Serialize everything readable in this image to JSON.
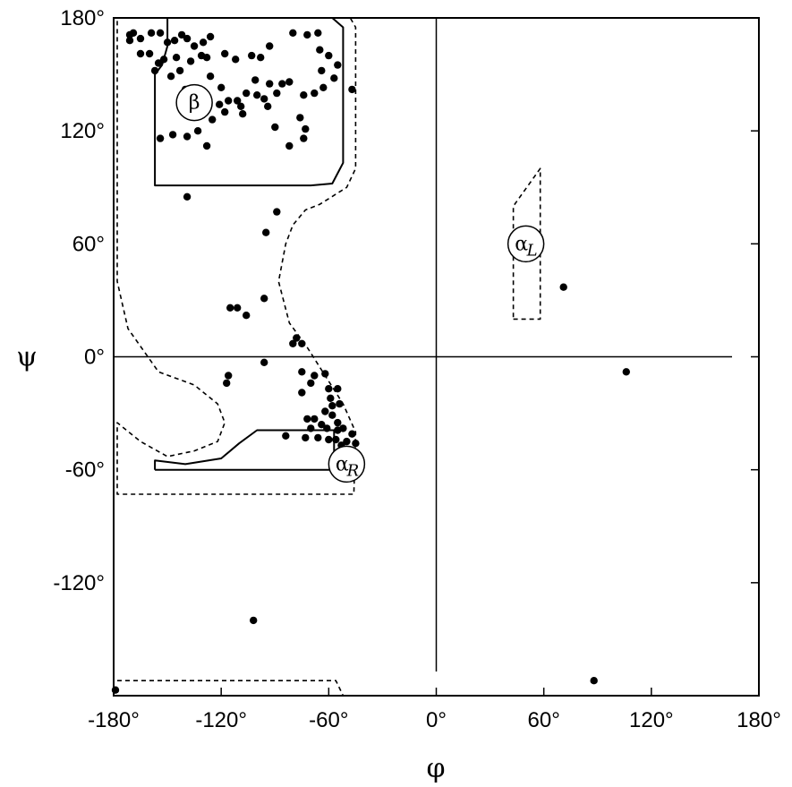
{
  "chart_data": {
    "type": "scatter",
    "title": "",
    "xlabel": "φ",
    "ylabel": "ψ",
    "xlim": [
      -180,
      180
    ],
    "ylim": [
      -180,
      180
    ],
    "x_ticks": [
      -180,
      -120,
      -60,
      0,
      60,
      120,
      180
    ],
    "y_ticks": [
      -120,
      -60,
      0,
      60,
      120,
      180
    ],
    "x_tick_labels": [
      "-180°",
      "-120°",
      "-60°",
      "0°",
      "60°",
      "120°",
      "180°"
    ],
    "y_tick_labels": [
      "-120°",
      "-60°",
      "0°",
      "60°",
      "120°",
      "180°"
    ],
    "grid": false,
    "reference_lines": {
      "phi": 0,
      "psi": 0
    },
    "points": [
      [
        -171,
        171
      ],
      [
        -169,
        172
      ],
      [
        -165,
        169
      ],
      [
        -159,
        172
      ],
      [
        -154,
        172
      ],
      [
        -150,
        167
      ],
      [
        -146,
        168
      ],
      [
        -142,
        171
      ],
      [
        -139,
        169
      ],
      [
        -135,
        165
      ],
      [
        -130,
        167
      ],
      [
        -126,
        170
      ],
      [
        -118,
        161
      ],
      [
        -160,
        161
      ],
      [
        -152,
        158
      ],
      [
        -145,
        159
      ],
      [
        -137,
        157
      ],
      [
        -131,
        160
      ],
      [
        -128,
        159
      ],
      [
        -112,
        158
      ],
      [
        -103,
        160
      ],
      [
        -98,
        159
      ],
      [
        -93,
        165
      ],
      [
        -80,
        172
      ],
      [
        -72,
        171
      ],
      [
        -66,
        172
      ],
      [
        -65,
        163
      ],
      [
        -60,
        160
      ],
      [
        -64,
        152
      ],
      [
        -55,
        155
      ],
      [
        -57,
        148
      ],
      [
        -63,
        143
      ],
      [
        -68,
        140
      ],
      [
        -74,
        139
      ],
      [
        -86,
        145
      ],
      [
        -93,
        145
      ],
      [
        -101,
        147
      ],
      [
        -106,
        140
      ],
      [
        -111,
        136
      ],
      [
        -121,
        134
      ],
      [
        -130,
        135
      ],
      [
        -140,
        142
      ],
      [
        -148,
        149
      ],
      [
        -155,
        156
      ],
      [
        -165,
        161
      ],
      [
        -171,
        168
      ],
      [
        -157,
        152
      ],
      [
        -143,
        152
      ],
      [
        -126,
        149
      ],
      [
        -120,
        143
      ],
      [
        -116,
        136
      ],
      [
        -109,
        133
      ],
      [
        -100,
        139
      ],
      [
        -96,
        137
      ],
      [
        -94,
        133
      ],
      [
        -89,
        140
      ],
      [
        -82,
        146
      ],
      [
        -76,
        127
      ],
      [
        -73,
        121
      ],
      [
        -74,
        116
      ],
      [
        -82,
        112
      ],
      [
        -90,
        122
      ],
      [
        -108,
        129
      ],
      [
        -118,
        130
      ],
      [
        -125,
        126
      ],
      [
        -133,
        120
      ],
      [
        -139,
        117
      ],
      [
        -147,
        118
      ],
      [
        -154,
        116
      ],
      [
        -128,
        112
      ],
      [
        -136,
        137
      ],
      [
        -47,
        142
      ],
      [
        -139,
        85
      ],
      [
        -89,
        77
      ],
      [
        -95,
        66
      ],
      [
        -111,
        26
      ],
      [
        -115,
        26
      ],
      [
        -106,
        22
      ],
      [
        -96,
        31
      ],
      [
        -78,
        10
      ],
      [
        -75,
        7
      ],
      [
        -80,
        7
      ],
      [
        -96,
        -3
      ],
      [
        -116,
        -10
      ],
      [
        -117,
        -14
      ],
      [
        -75,
        -8
      ],
      [
        -68,
        -10
      ],
      [
        -62,
        -9
      ],
      [
        -70,
        -14
      ],
      [
        -75,
        -19
      ],
      [
        -60,
        -17
      ],
      [
        -59,
        -22
      ],
      [
        -55,
        -17
      ],
      [
        -58,
        -26
      ],
      [
        -54,
        -25
      ],
      [
        -58,
        -31
      ],
      [
        -62,
        -29
      ],
      [
        -68,
        -33
      ],
      [
        -72,
        -33
      ],
      [
        -70,
        -38
      ],
      [
        -64,
        -36
      ],
      [
        -61,
        -38
      ],
      [
        -55,
        -35
      ],
      [
        -52,
        -38
      ],
      [
        -56,
        -44
      ],
      [
        -60,
        -44
      ],
      [
        -66,
        -43
      ],
      [
        -73,
        -43
      ],
      [
        -84,
        -42
      ],
      [
        -50,
        -45
      ],
      [
        -45,
        -46
      ],
      [
        -53,
        -47
      ],
      [
        -55,
        -39
      ],
      [
        -47,
        -41
      ],
      [
        -102,
        -140
      ],
      [
        71,
        37
      ],
      [
        106,
        -8
      ],
      [
        88,
        -172
      ],
      [
        -179,
        -177
      ]
    ],
    "contours": {
      "core": [
        [
          [
            -157,
            180
          ],
          [
            -58,
            180
          ],
          [
            -52,
            175
          ],
          [
            -52,
            103
          ],
          [
            -58,
            92
          ],
          [
            -70,
            91
          ],
          [
            -157,
            91
          ],
          [
            -157,
            150
          ],
          [
            -153,
            155
          ],
          [
            -150,
            165
          ],
          [
            -150,
            180
          ]
        ],
        [
          [
            -157,
            -60
          ],
          [
            -57,
            -60
          ],
          [
            -57,
            -39
          ],
          [
            -100,
            -39
          ],
          [
            -110,
            -46
          ],
          [
            -120,
            -54
          ],
          [
            -140,
            -57
          ],
          [
            -157,
            -55
          ],
          [
            -157,
            -60
          ]
        ]
      ],
      "allowed": [
        [
          [
            -178,
            180
          ],
          [
            -48,
            180
          ],
          [
            -45,
            175
          ],
          [
            -45,
            100
          ],
          [
            -50,
            90
          ],
          [
            -65,
            81
          ],
          [
            -73,
            78
          ],
          [
            -80,
            70
          ],
          [
            -84,
            60
          ],
          [
            -88,
            40
          ],
          [
            -82,
            18
          ],
          [
            -72,
            5
          ],
          [
            -62,
            -10
          ],
          [
            -52,
            -25
          ],
          [
            -45,
            -40
          ],
          [
            -46,
            -73
          ],
          [
            -178,
            -73
          ],
          [
            -178,
            -35
          ],
          [
            -165,
            -45
          ],
          [
            -150,
            -53
          ],
          [
            -135,
            -50
          ],
          [
            -122,
            -45
          ],
          [
            -118,
            -35
          ],
          [
            -122,
            -25
          ],
          [
            -135,
            -15
          ],
          [
            -155,
            -8
          ],
          [
            -172,
            15
          ],
          [
            -178,
            40
          ],
          [
            -178,
            180
          ]
        ],
        [
          [
            -178,
            -172
          ],
          [
            -56,
            -172
          ],
          [
            -54,
            -176
          ],
          [
            -52,
            -180
          ]
        ],
        [
          [
            43,
            20
          ],
          [
            58,
            20
          ],
          [
            58,
            100
          ],
          [
            43,
            80
          ],
          [
            43,
            20
          ]
        ]
      ]
    },
    "region_labels": [
      {
        "name": "β",
        "subscript": "",
        "phi": -135,
        "psi": 135
      },
      {
        "name": "α",
        "subscript": "R",
        "phi": -50,
        "psi": -57
      },
      {
        "name": "α",
        "subscript": "L",
        "phi": 50,
        "psi": 60
      }
    ]
  }
}
